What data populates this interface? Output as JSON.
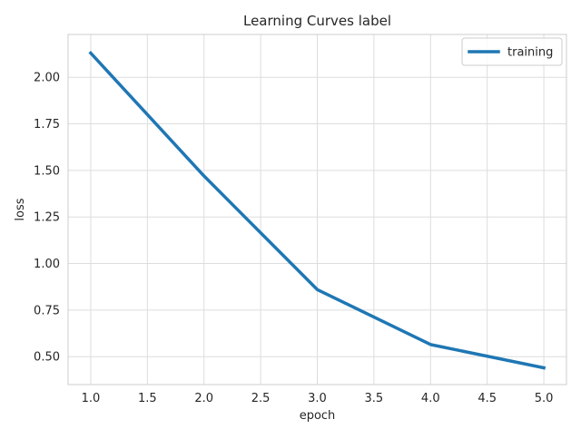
{
  "chart_data": {
    "type": "line",
    "title": "Learning Curves label",
    "xlabel": "epoch",
    "ylabel": "loss",
    "xlim": [
      0.8,
      5.2
    ],
    "ylim": [
      0.35,
      2.23
    ],
    "x_ticks": [
      "1.0",
      "1.5",
      "2.0",
      "2.5",
      "3.0",
      "3.5",
      "4.0",
      "4.5",
      "5.0"
    ],
    "y_ticks": [
      "0.50",
      "0.75",
      "1.00",
      "1.25",
      "1.50",
      "1.75",
      "2.00"
    ],
    "grid": true,
    "legend_position": "top-right",
    "series": [
      {
        "name": "training",
        "color": "#1f77b4",
        "x": [
          1,
          2,
          3,
          4,
          5
        ],
        "y": [
          2.13,
          1.47,
          0.86,
          0.565,
          0.44
        ]
      }
    ]
  }
}
